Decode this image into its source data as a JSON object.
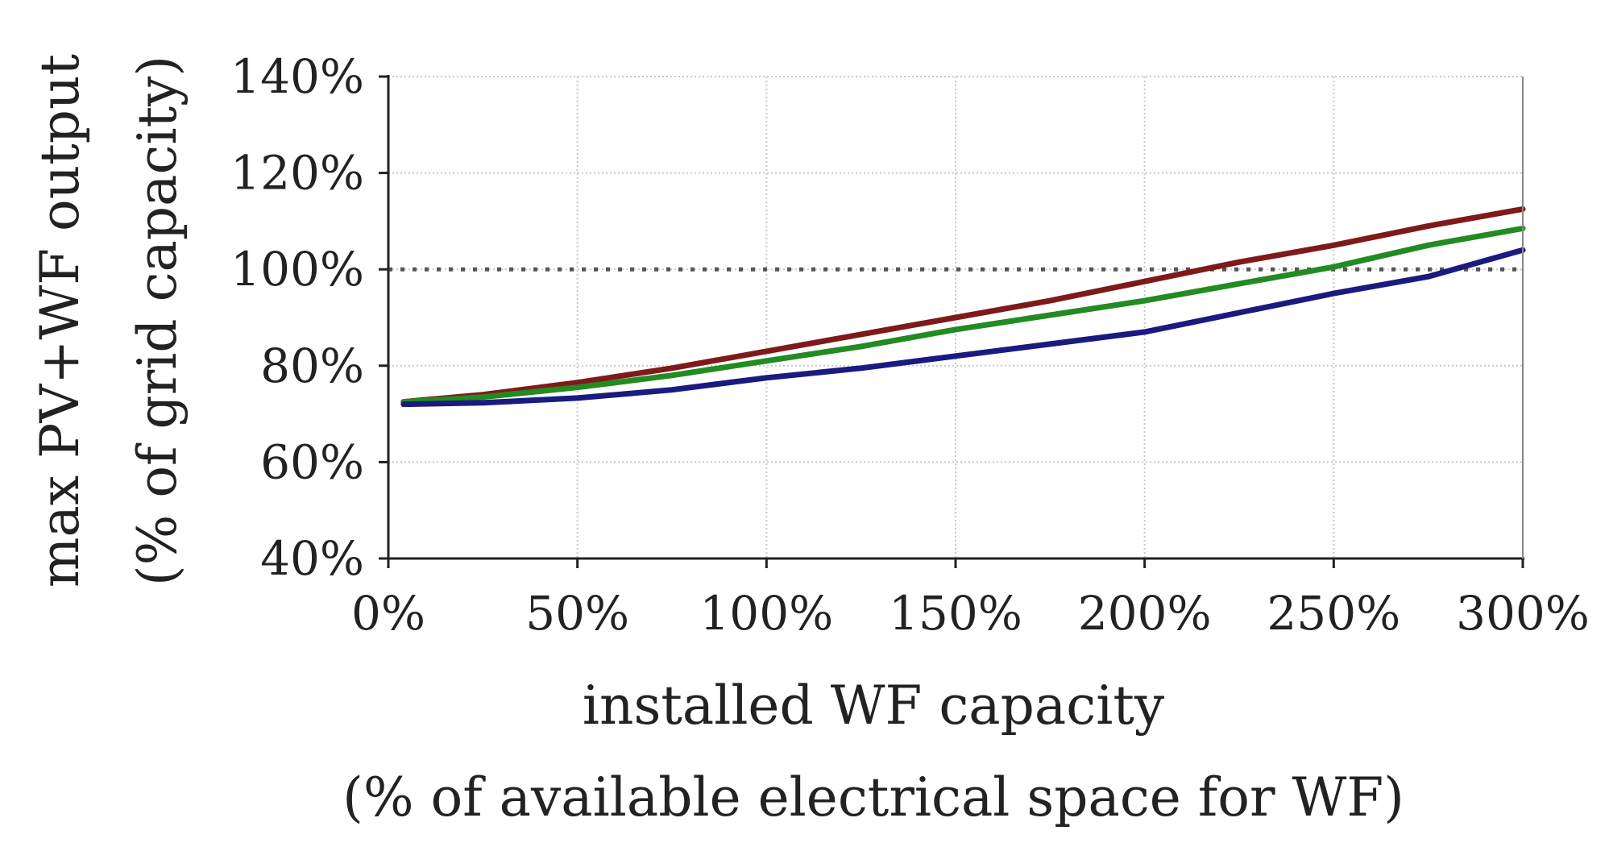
{
  "chart_data": {
    "type": "line",
    "title": "",
    "xlabel": "installed WF capacity",
    "xlabel_sub": "(% of available electrical space for WF)",
    "ylabel": "max PV+WF output",
    "ylabel_sub": "(% of grid capacity)",
    "xlim": [
      0,
      300
    ],
    "ylim": [
      40,
      140
    ],
    "x_ticks": [
      0,
      50,
      100,
      150,
      200,
      250,
      300
    ],
    "x_tick_labels": [
      "0%",
      "50%",
      "100%",
      "150%",
      "200%",
      "250%",
      "300%"
    ],
    "y_ticks": [
      40,
      60,
      80,
      100,
      120,
      140
    ],
    "y_tick_labels": [
      "40%",
      "60%",
      "80%",
      "100%",
      "120%",
      "140%"
    ],
    "grid": true,
    "reference_line": {
      "y": 100,
      "style": "dotted",
      "color": "#555555"
    },
    "series": [
      {
        "name": "red series",
        "color": "#7f1a1a",
        "x": [
          4,
          25,
          50,
          75,
          100,
          125,
          150,
          175,
          200,
          225,
          250,
          275,
          300
        ],
        "values": [
          72.5,
          74,
          76.5,
          79.5,
          83,
          86.5,
          90,
          93.5,
          97.5,
          101.5,
          105,
          109,
          112.5
        ]
      },
      {
        "name": "green series",
        "color": "#228b22",
        "x": [
          4,
          25,
          50,
          75,
          100,
          125,
          150,
          175,
          200,
          225,
          250,
          275,
          300
        ],
        "values": [
          72.5,
          73.5,
          75.5,
          78,
          81,
          84,
          87.5,
          90.5,
          93.5,
          97,
          100.5,
          105,
          108.5
        ]
      },
      {
        "name": "blue series",
        "color": "#1a1a80",
        "x": [
          4,
          25,
          50,
          75,
          100,
          125,
          150,
          175,
          200,
          225,
          250,
          275,
          300
        ],
        "values": [
          72,
          72.3,
          73.3,
          75,
          77.5,
          79.5,
          82,
          84.5,
          87,
          91,
          95,
          98.5,
          104
        ]
      }
    ]
  }
}
